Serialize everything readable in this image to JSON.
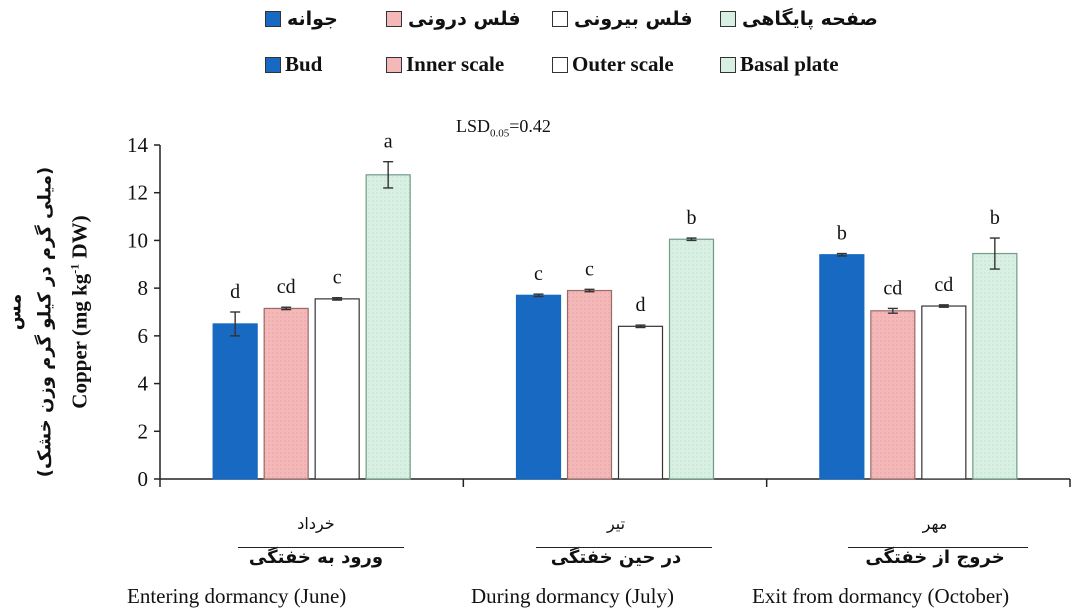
{
  "legend": {
    "fa": [
      "جوانه",
      "فلس درونی",
      "فلس بیرونی",
      "صفحه پایگاهی"
    ],
    "en": [
      "Bud",
      "Inner scale",
      "Outer scale",
      "Basal plate"
    ]
  },
  "colors": {
    "bud": "#1769c1",
    "inner_scale": "#f4b8b8",
    "outer_scale": "#ffffff",
    "basal_plate": "#d8f0e4"
  },
  "annotation": {
    "lsd_prefix": "LSD",
    "lsd_sub": "0.05",
    "lsd_value": "=0.42"
  },
  "yaxis": {
    "en_main": "Copper (mg kg",
    "en_sup": "-1",
    "en_tail": " DW)",
    "fa_line1": "مس",
    "fa_line2": "(میلی گرم در کیلو گرم وزن خشک)"
  },
  "groups": [
    {
      "fa_month": "خرداد",
      "fa_stage": "ورود به خفتگی",
      "en": "Entering dormancy (June)"
    },
    {
      "fa_month": "تیر",
      "fa_stage": "در حین خفتگی",
      "en": "During dormancy (July)"
    },
    {
      "fa_month": "مهر",
      "fa_stage": "خروج از خفتگی",
      "en": "Exit from dormancy (October)"
    }
  ],
  "chart_data": {
    "type": "bar",
    "categories": [
      "Entering dormancy (June)",
      "During dormancy (July)",
      "Exit from dormancy (October)"
    ],
    "series": [
      {
        "name": "Bud",
        "values": [
          6.5,
          7.7,
          9.4
        ],
        "errors": [
          0.5,
          0.05,
          0.05
        ],
        "letters": [
          "d",
          "c",
          "b"
        ]
      },
      {
        "name": "Inner scale",
        "values": [
          7.15,
          7.9,
          7.05
        ],
        "errors": [
          0.05,
          0.05,
          0.1
        ],
        "letters": [
          "cd",
          "c",
          "cd"
        ]
      },
      {
        "name": "Outer scale",
        "values": [
          7.55,
          6.4,
          7.25
        ],
        "errors": [
          0.05,
          0.05,
          0.05
        ],
        "letters": [
          "c",
          "d",
          "cd"
        ]
      },
      {
        "name": "Basal plate",
        "values": [
          12.75,
          10.05,
          9.45
        ],
        "errors": [
          0.55,
          0.05,
          0.65
        ],
        "letters": [
          "a",
          "b",
          "b"
        ]
      }
    ],
    "ylim": [
      0,
      14
    ],
    "yticks": [
      "0",
      "2",
      "4",
      "6",
      "8",
      "10",
      "12",
      "14"
    ],
    "grid": false,
    "legend_position": "top"
  }
}
